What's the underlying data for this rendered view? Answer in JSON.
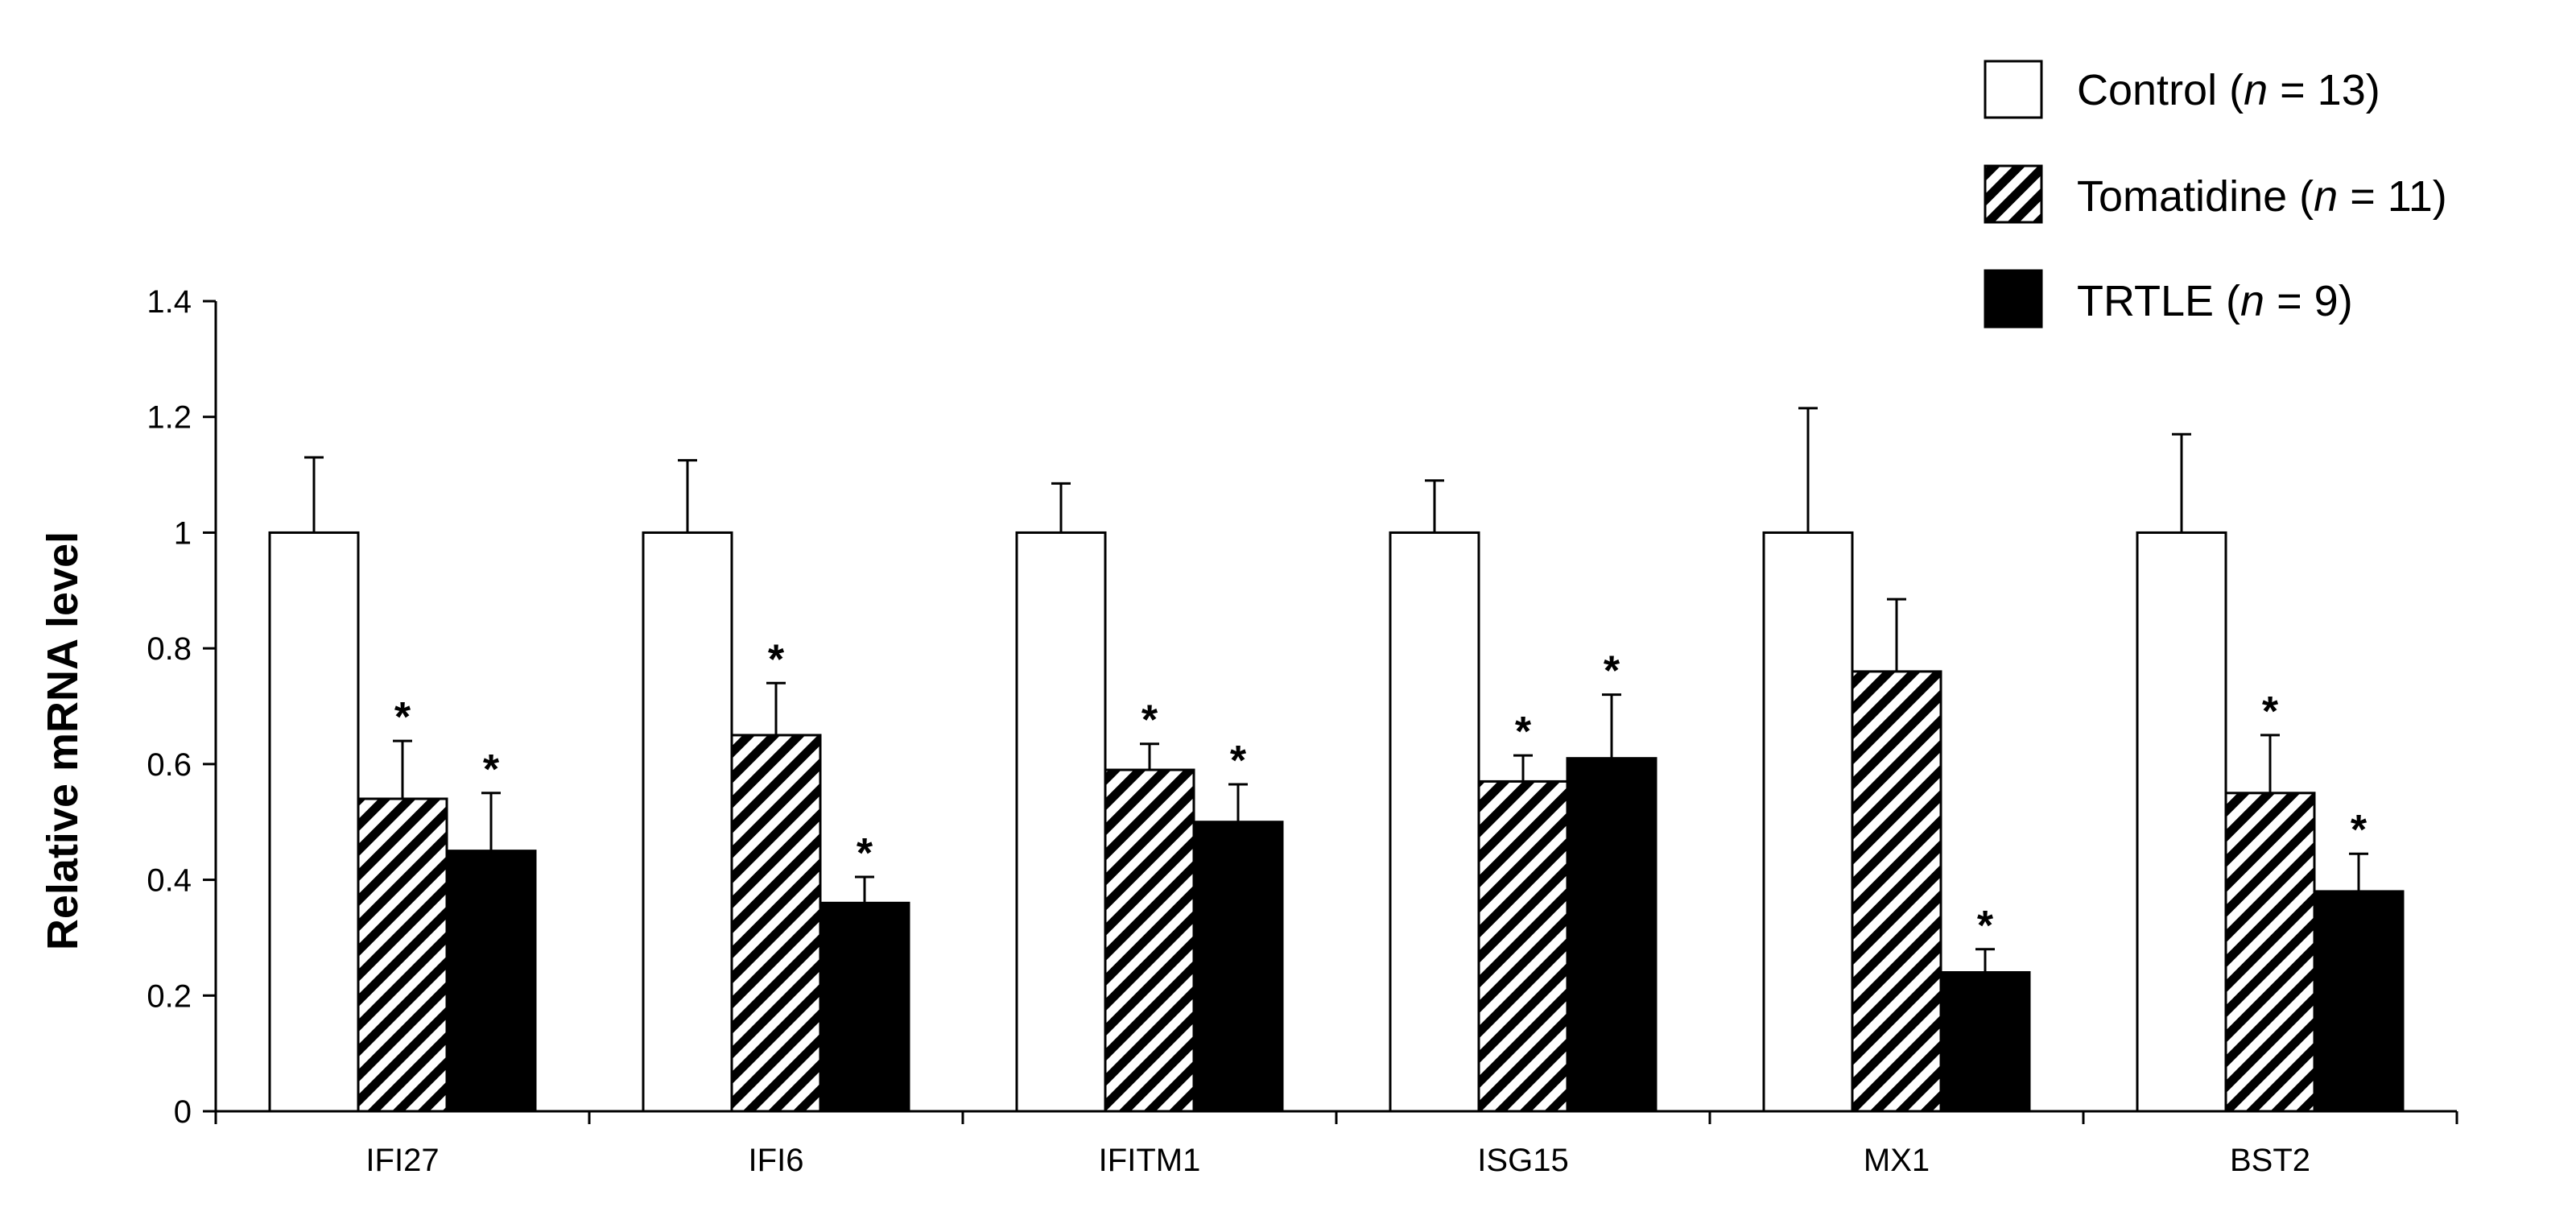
{
  "chart_data": {
    "type": "bar",
    "title": "",
    "xlabel": "",
    "ylabel": "Relative mRNA level",
    "ylim": [
      0,
      1.4
    ],
    "yticks": [
      0,
      0.2,
      0.4,
      0.6,
      0.8,
      1,
      1.2,
      1.4
    ],
    "ytick_labels": [
      "0",
      "0.2",
      "0.4",
      "0.6",
      "0.8",
      "1",
      "1.2",
      "1.4"
    ],
    "grid": false,
    "legend_position": "top-right",
    "significance_marker": "*",
    "categories": [
      "IFI27",
      "IFI6",
      "IFITM1",
      "ISG15",
      "MX1",
      "BST2"
    ],
    "series": [
      {
        "name": "Control",
        "n_label": "13",
        "pattern": "white",
        "values": [
          1.0,
          1.0,
          1.0,
          1.0,
          1.0,
          1.0
        ],
        "errors": [
          0.13,
          0.125,
          0.085,
          0.09,
          0.215,
          0.17
        ],
        "significant": [
          false,
          false,
          false,
          false,
          false,
          false
        ]
      },
      {
        "name": "Tomatidine",
        "n_label": "11",
        "pattern": "hatched",
        "values": [
          0.54,
          0.65,
          0.59,
          0.57,
          0.76,
          0.55
        ],
        "errors": [
          0.1,
          0.09,
          0.045,
          0.045,
          0.125,
          0.1
        ],
        "significant": [
          true,
          true,
          true,
          true,
          false,
          true
        ]
      },
      {
        "name": "TRTLE",
        "n_label": "9",
        "pattern": "black",
        "values": [
          0.45,
          0.36,
          0.5,
          0.61,
          0.24,
          0.38
        ],
        "errors": [
          0.1,
          0.045,
          0.065,
          0.11,
          0.04,
          0.065
        ],
        "significant": [
          true,
          true,
          true,
          true,
          true,
          true
        ]
      }
    ]
  }
}
